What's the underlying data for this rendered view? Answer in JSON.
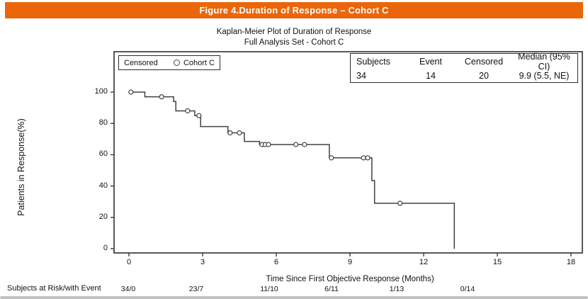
{
  "banner": {
    "title": "Figure 4.Duration of Response – Cohort C",
    "bg_color": "#EB660A",
    "text_color": "#FFFFFF"
  },
  "legend": {
    "censored_label": "Censored",
    "series_label": "Cohort C",
    "marker": "open-circle"
  },
  "stats_box": {
    "headers": [
      "Subjects",
      "Event",
      "Censored",
      "Median (95% CI)"
    ],
    "values": [
      "34",
      "14",
      "20",
      "9.9 (5.5, NE)"
    ]
  },
  "chart_data": {
    "type": "line",
    "subtype": "kaplan-meier-step",
    "title": "Kaplan-Meier Plot of Duration of Response",
    "subtitle": "Full Analysis Set - Cohort C",
    "xlabel": "Time Since First Objective Response (Months)",
    "ylabel": "Patients in Response(%)",
    "xlim": [
      0,
      18
    ],
    "ylim": [
      0,
      100
    ],
    "x_ticks": [
      0,
      3,
      6,
      9,
      12,
      15,
      18
    ],
    "y_ticks": [
      0,
      20,
      40,
      60,
      80,
      100
    ],
    "grid": false,
    "legend_position": "top-left-inside",
    "line_color": "#404040",
    "series": [
      {
        "name": "Cohort C",
        "step_points": [
          [
            0,
            100
          ],
          [
            0.65,
            97
          ],
          [
            1.82,
            94
          ],
          [
            1.91,
            88
          ],
          [
            2.68,
            85
          ],
          [
            2.92,
            78
          ],
          [
            4.03,
            74
          ],
          [
            4.7,
            68.5
          ],
          [
            5.32,
            66.5
          ],
          [
            8.16,
            58
          ],
          [
            9.89,
            43.5
          ],
          [
            10.0,
            29
          ],
          [
            13.25,
            0
          ]
        ],
        "censor_marks": [
          [
            0.08,
            100
          ],
          [
            1.33,
            97
          ],
          [
            2.39,
            88
          ],
          [
            2.85,
            85
          ],
          [
            4.12,
            74
          ],
          [
            4.5,
            74
          ],
          [
            5.42,
            66.5
          ],
          [
            5.55,
            66.5
          ],
          [
            5.68,
            66.5
          ],
          [
            6.8,
            66.5
          ],
          [
            7.15,
            66.5
          ],
          [
            8.24,
            58
          ],
          [
            9.55,
            58
          ],
          [
            9.72,
            58
          ],
          [
            11.04,
            29
          ]
        ]
      }
    ],
    "at_risk": {
      "label": "Subjects at Risk/with Event",
      "times": [
        0,
        3,
        6,
        9,
        12,
        15
      ],
      "values": [
        "34/0",
        "23/7",
        "11/10",
        "6/11",
        "1/13",
        "0/14"
      ]
    }
  }
}
